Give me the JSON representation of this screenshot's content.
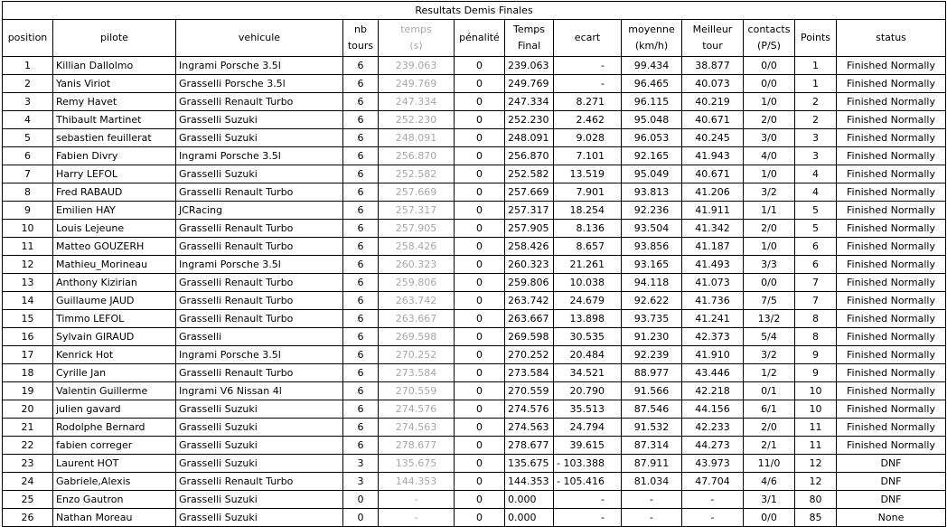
{
  "table": {
    "title": "Resultats Demis Finales",
    "header": [
      [
        "position"
      ],
      [
        "pilote"
      ],
      [
        "vehicule"
      ],
      [
        "nb",
        "tours"
      ],
      [
        "temps",
        "(s)"
      ],
      [
        "pénalité"
      ],
      [
        "Temps",
        "Final"
      ],
      [
        "ecart"
      ],
      [
        "moyenne",
        "(km/h)"
      ],
      [
        "Meilleur",
        "tour"
      ],
      [
        "contacts",
        "(P/S)"
      ],
      [
        "Points"
      ],
      [
        "status"
      ]
    ],
    "rows": [
      [
        "1",
        "Killian Dallolmo",
        "Ingrami Porsche 3.5l",
        "6",
        "239.063",
        "0",
        "239.063",
        "-",
        "99.434",
        "38.877",
        "0/0",
        "1",
        "Finished Normally"
      ],
      [
        "2",
        "Yanis Viriot",
        "Grasselli Porsche 3.5l",
        "6",
        "249.769",
        "0",
        "249.769",
        "-",
        "96.465",
        "40.073",
        "0/0",
        "1",
        "Finished Normally"
      ],
      [
        "3",
        "Remy Havet",
        "Grasselli Renault Turbo",
        "6",
        "247.334",
        "0",
        "247.334",
        "8.271",
        "96.115",
        "40.219",
        "1/0",
        "2",
        "Finished Normally"
      ],
      [
        "4",
        "Thibault Martinet",
        "Grasselli Suzuki",
        "6",
        "252.230",
        "0",
        "252.230",
        "2.462",
        "95.048",
        "40.671",
        "2/0",
        "2",
        "Finished Normally"
      ],
      [
        "5",
        "sebastien feuillerat",
        "Grasselli Suzuki",
        "6",
        "248.091",
        "0",
        "248.091",
        "9.028",
        "96.053",
        "40.245",
        "3/0",
        "3",
        "Finished Normally"
      ],
      [
        "6",
        "Fabien Divry",
        "Ingrami Porsche 3.5l",
        "6",
        "256.870",
        "0",
        "256.870",
        "7.101",
        "92.165",
        "41.943",
        "4/0",
        "3",
        "Finished Normally"
      ],
      [
        "7",
        "Harry LEFOL",
        "Grasselli Suzuki",
        "6",
        "252.582",
        "0",
        "252.582",
        "13.519",
        "95.049",
        "40.671",
        "1/0",
        "4",
        "Finished Normally"
      ],
      [
        "8",
        "Fred RABAUD",
        "Grasselli Renault Turbo",
        "6",
        "257.669",
        "0",
        "257.669",
        "7.901",
        "93.813",
        "41.206",
        "3/2",
        "4",
        "Finished Normally"
      ],
      [
        "9",
        "Emilien HAY",
        "JCRacing",
        "6",
        "257.317",
        "0",
        "257.317",
        "18.254",
        "92.236",
        "41.911",
        "1/1",
        "5",
        "Finished Normally"
      ],
      [
        "10",
        "Louis Lejeune",
        "Grasselli Renault Turbo",
        "6",
        "257.905",
        "0",
        "257.905",
        "8.136",
        "93.504",
        "41.342",
        "2/0",
        "5",
        "Finished Normally"
      ],
      [
        "11",
        "Matteo GOUZERH",
        "Grasselli Renault Turbo",
        "6",
        "258.426",
        "0",
        "258.426",
        "8.657",
        "93.856",
        "41.187",
        "1/0",
        "6",
        "Finished Normally"
      ],
      [
        "12",
        "Mathieu_Morineau",
        "Ingrami Porsche 3.5l",
        "6",
        "260.323",
        "0",
        "260.323",
        "21.261",
        "93.165",
        "41.493",
        "3/3",
        "6",
        "Finished Normally"
      ],
      [
        "13",
        "Anthony Kizirian",
        "Grasselli Renault Turbo",
        "6",
        "259.806",
        "0",
        "259.806",
        "10.038",
        "94.118",
        "41.073",
        "0/0",
        "7",
        "Finished Normally"
      ],
      [
        "14",
        "Guillaume JAUD",
        "Grasselli Renault Turbo",
        "6",
        "263.742",
        "0",
        "263.742",
        "24.679",
        "92.622",
        "41.736",
        "7/5",
        "7",
        "Finished Normally"
      ],
      [
        "15",
        "Timmo LEFOL",
        "Grasselli Renault Turbo",
        "6",
        "263.667",
        "0",
        "263.667",
        "13.898",
        "93.735",
        "41.241",
        "13/2",
        "8",
        "Finished Normally"
      ],
      [
        "16",
        "Sylvain GIRAUD",
        "Grasselli",
        "6",
        "269.598",
        "0",
        "269.598",
        "30.535",
        "91.230",
        "42.373",
        "5/4",
        "8",
        "Finished Normally"
      ],
      [
        "17",
        "Kenrick Hot",
        "Ingrami Porsche 3.5l",
        "6",
        "270.252",
        "0",
        "270.252",
        "20.484",
        "92.239",
        "41.910",
        "3/2",
        "9",
        "Finished Normally"
      ],
      [
        "18",
        "Cyrille Jan",
        "Grasselli Renault Turbo",
        "6",
        "273.584",
        "0",
        "273.584",
        "34.521",
        "88.977",
        "43.446",
        "1/2",
        "9",
        "Finished Normally"
      ],
      [
        "19",
        "Valentin Guillerme",
        "Ingrami V6 Nissan 4l",
        "6",
        "270.559",
        "0",
        "270.559",
        "20.790",
        "91.566",
        "42.218",
        "0/1",
        "10",
        "Finished Normally"
      ],
      [
        "20",
        "julien gavard",
        "Grasselli Suzuki",
        "6",
        "274.576",
        "0",
        "274.576",
        "35.513",
        "87.546",
        "44.156",
        "6/1",
        "10",
        "Finished Normally"
      ],
      [
        "21",
        "Rodolphe Bernard",
        "Grasselli Suzuki",
        "6",
        "274.563",
        "0",
        "274.563",
        "24.794",
        "91.532",
        "42.233",
        "2/0",
        "11",
        "Finished Normally"
      ],
      [
        "22",
        "fabien correger",
        "Grasselli Suzuki",
        "6",
        "278.677",
        "0",
        "278.677",
        "39.615",
        "87.314",
        "44.273",
        "2/1",
        "11",
        "Finished Normally"
      ],
      [
        "23",
        "Laurent HOT",
        "Grasselli Suzuki",
        "3",
        "135.675",
        "0",
        "135.675",
        "- 103.388",
        "87.911",
        "43.973",
        "11/0",
        "12",
        "DNF"
      ],
      [
        "24",
        "Gabriele,Alexis",
        "Grasselli Renault Turbo",
        "3",
        "144.353",
        "0",
        "144.353",
        "- 105.416",
        "81.034",
        "47.704",
        "4/6",
        "12",
        "DNF"
      ],
      [
        "25",
        "Enzo Gautron",
        "Grasselli Suzuki",
        "0",
        "-",
        "0",
        "0.000",
        "-",
        "-",
        "-",
        "3/1",
        "80",
        "DNF"
      ],
      [
        "26",
        "Nathan Moreau",
        "Grasselli Suzuki",
        "0",
        "-",
        "0",
        "0.000",
        "-",
        "-",
        "-",
        "0/0",
        "85",
        "None"
      ]
    ]
  }
}
